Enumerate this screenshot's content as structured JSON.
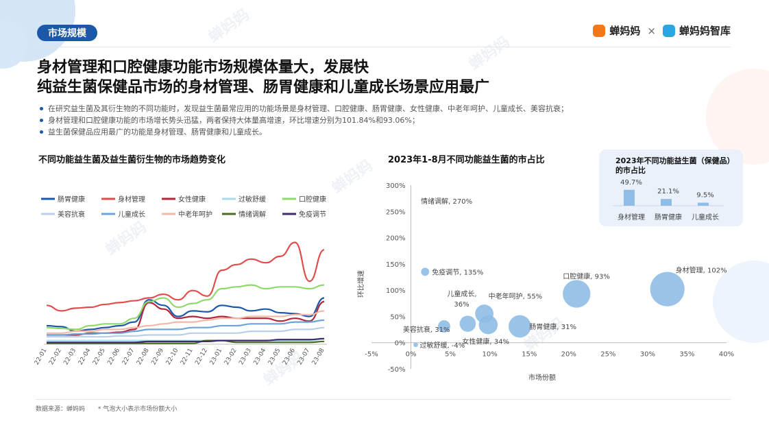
{
  "header": {
    "tag": "市场规模",
    "logo_left": "蝉妈妈",
    "logo_sep": "×",
    "logo_right": "蝉妈妈智库",
    "title_line1": "身材管理和口腔健康功能市场规模体量大，发展快",
    "title_line2": "纯益生菌保健品市场的身材管理、肠胃健康和儿童成长场景应用最广",
    "brand_color": "#1b58a8"
  },
  "bullets": [
    "在研究益生菌及其衍生物的不同功能时，发现益生菌最常应用的功能场景是身材管理、口腔健康、肠胃健康、女性健康、中老年呵护、儿童成长、美容抗衰；",
    "身材管理和口腔健康功能的市场增长势头迅猛，两者保持大体量高增速，环比增速分别为101.84%和93.06%；",
    "益生菌保健品应用最广的功能是身材管理、肠胃健康和儿童成长。"
  ],
  "footer": {
    "source": "数据来源：蝉妈妈",
    "note": "* 气泡大小表示市场份额大小"
  },
  "watermark": "蝉妈妈",
  "chart_data": [
    {
      "type": "line",
      "title": "不同功能益生菌及益生菌衍生物的市场趋势变化",
      "xlabel": "",
      "ylabel": "",
      "grid": false,
      "legend": "top",
      "categories": [
        "22-01",
        "22-02",
        "22-03",
        "22-04",
        "22-05",
        "22-06",
        "22-07",
        "22-08",
        "22-09",
        "22-10",
        "22-11",
        "22-12",
        "23-01",
        "23-02",
        "23-03",
        "23-04",
        "23-05",
        "23-06",
        "23-07",
        "23-08"
      ],
      "series": [
        {
          "name": "肠胃健康",
          "color": "#1b58a8",
          "values": [
            20,
            19,
            14,
            16,
            18,
            20,
            24,
            48,
            42,
            30,
            36,
            35,
            42,
            40,
            36,
            38,
            34,
            33,
            30,
            50
          ]
        },
        {
          "name": "身材管理",
          "color": "#e24c4c",
          "values": [
            42,
            36,
            39,
            40,
            43,
            45,
            47,
            50,
            54,
            48,
            58,
            52,
            80,
            86,
            92,
            88,
            95,
            110,
            68,
            102
          ]
        },
        {
          "name": "女性健康",
          "color": "#b2263a",
          "values": [
            10,
            10,
            10,
            12,
            12,
            13,
            16,
            45,
            38,
            28,
            30,
            28,
            30,
            28,
            28,
            28,
            25,
            28,
            25,
            46
          ]
        },
        {
          "name": "过敏舒缓",
          "color": "#a9dcea",
          "values": [
            4,
            4,
            4,
            4,
            4,
            4,
            4,
            4,
            4,
            4,
            4,
            4,
            4,
            4,
            4,
            4,
            4,
            4,
            4,
            6
          ]
        },
        {
          "name": "口腔健康",
          "color": "#8fd96a",
          "values": [
            18,
            17,
            16,
            20,
            22,
            22,
            28,
            46,
            50,
            40,
            44,
            48,
            60,
            62,
            64,
            60,
            62,
            62,
            60,
            64
          ]
        },
        {
          "name": "美容抗衰",
          "color": "#b9cee8",
          "values": [
            8,
            8,
            8,
            8,
            8,
            9,
            9,
            10,
            10,
            10,
            12,
            12,
            12,
            12,
            14,
            14,
            14,
            16,
            16,
            18
          ]
        },
        {
          "name": "儿童成长",
          "color": "#6aa4d8",
          "values": [
            10,
            10,
            11,
            11,
            12,
            12,
            14,
            16,
            16,
            16,
            18,
            18,
            20,
            20,
            22,
            22,
            22,
            24,
            24,
            26
          ]
        },
        {
          "name": "中老年呵护",
          "color": "#f2b8a8",
          "values": [
            12,
            12,
            14,
            14,
            16,
            16,
            18,
            20,
            22,
            24,
            24,
            26,
            28,
            28,
            30,
            30,
            30,
            32,
            32,
            36
          ]
        },
        {
          "name": "情绪调解",
          "color": "#4a6b1e",
          "values": [
            1,
            1,
            1,
            1,
            1,
            1,
            1,
            1,
            1,
            1,
            1,
            4,
            4,
            2,
            2,
            2,
            2,
            2,
            2,
            3
          ]
        },
        {
          "name": "免疫调节",
          "color": "#3e2a6e",
          "values": [
            2,
            2,
            2,
            2,
            2,
            2,
            2,
            3,
            3,
            3,
            3,
            3,
            4,
            4,
            4,
            4,
            5,
            5,
            5,
            6
          ]
        }
      ]
    },
    {
      "type": "scatter",
      "title": "2023年1-8月不同功能益生菌的市占比",
      "xlabel": "市场份额",
      "ylabel": "环比增速",
      "xlim": [
        -5,
        40
      ],
      "ylim": [
        -50,
        300
      ],
      "x_ticks": [
        "-5%",
        "0%",
        "5%",
        "10%",
        "15%",
        "20%",
        "25%",
        "30%",
        "35%",
        "40%"
      ],
      "y_ticks": [
        "-50%",
        "0%",
        "50%",
        "100%",
        "150%",
        "200%",
        "250%",
        "300%"
      ],
      "grid": false,
      "bubble_color": "#8fbde6",
      "points": [
        {
          "label": "身材管理, 102%",
          "x": 32.5,
          "y": 102,
          "size": 32.5
        },
        {
          "label": "口腔健康, 93%",
          "x": 21.0,
          "y": 93,
          "size": 21.0
        },
        {
          "label": "肠胃健康, 31%",
          "x": 13.8,
          "y": 31,
          "size": 13.8
        },
        {
          "label": "中老年呵护, 55%",
          "x": 9.3,
          "y": 55,
          "size": 9.3
        },
        {
          "label": "女性健康, 34%",
          "x": 9.8,
          "y": 34,
          "size": 9.8
        },
        {
          "label": "儿童成长, 36%",
          "x": 7.2,
          "y": 36,
          "size": 7.2
        },
        {
          "label": "美容抗衰, 31%",
          "x": 4.2,
          "y": 31,
          "size": 4.2
        },
        {
          "label": "免疫调节, 135%",
          "x": 1.8,
          "y": 135,
          "size": 1.8
        },
        {
          "label": "情绪调解, 270%",
          "x": 0.4,
          "y": 270,
          "size": 0.0
        },
        {
          "label": "过敏舒缓, -4%",
          "x": 0.6,
          "y": -4,
          "size": 0.6
        }
      ]
    },
    {
      "type": "bar",
      "title": "2023年不同功能益生菌（保健品）的市占比",
      "categories": [
        "身材管理",
        "肠胃健康",
        "儿童成长"
      ],
      "values": [
        49.7,
        21.1,
        9.5
      ],
      "value_labels": [
        "49.7%",
        "21.1%",
        "9.5%"
      ],
      "ylim": [
        0,
        60
      ],
      "bar_color": "#8fbde6"
    }
  ]
}
